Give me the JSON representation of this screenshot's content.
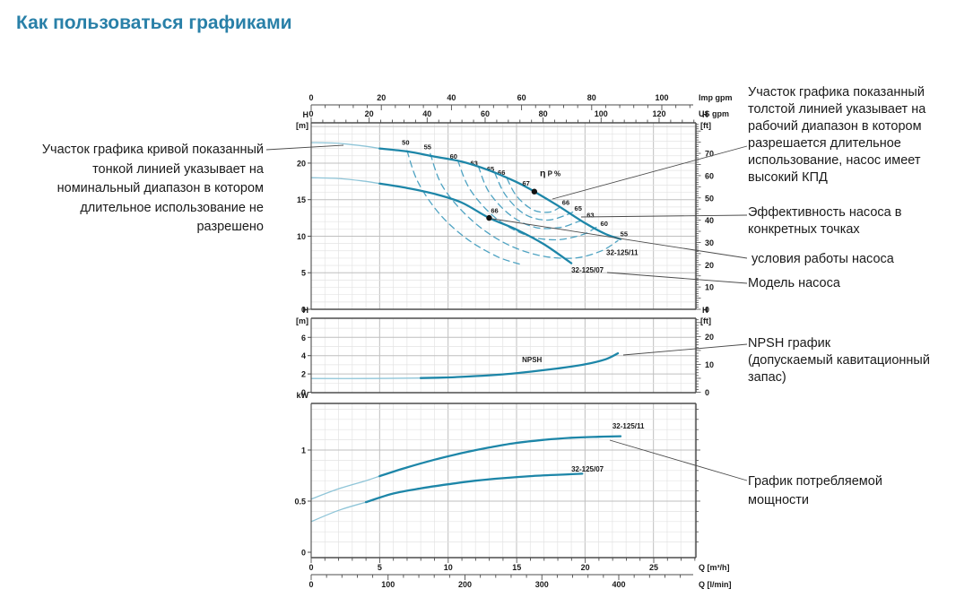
{
  "title": "Как пользоваться графиками",
  "colors": {
    "title_text": "#2980a8",
    "curve": "#1d86a8",
    "curve_thin": "#8fc5d8",
    "efficiency_dash": "#4fa3c2",
    "grid_minor": "#e3e3e3",
    "grid_major": "#bfbfbf",
    "frame": "#4d4d4d",
    "connector": "#4a4a4a",
    "text": "#1a1a1a"
  },
  "rulers": {
    "imp_gpm": {
      "unit": "Imp gpm",
      "ticks": [
        0,
        20,
        40,
        60,
        80,
        100
      ]
    },
    "us_gpm": {
      "unit": "US gpm",
      "ticks": [
        0,
        20,
        40,
        60,
        80,
        100,
        120
      ]
    },
    "q_m3h": {
      "unit": "Q [m³/h]",
      "ticks": [
        0,
        5,
        10,
        15,
        20,
        25
      ]
    },
    "q_lmin": {
      "unit": "Q [l/min]",
      "ticks": [
        0,
        100,
        200,
        300,
        400
      ]
    }
  },
  "chart_data": [
    {
      "type": "line",
      "name": "head-flow-curves",
      "xlabel": "Q [m³/h]",
      "x_range": [
        0,
        28.1
      ],
      "y_left": {
        "title": "H",
        "unit": "[m]",
        "ticks": [
          0,
          5,
          10,
          15,
          20
        ],
        "range": [
          0,
          25.5
        ]
      },
      "y_right": {
        "title": "H",
        "unit": "[ft]",
        "ticks": [
          0,
          10,
          20,
          30,
          40,
          50,
          60,
          70
        ]
      },
      "series": [
        {
          "name": "32-125/11",
          "thin": [
            [
              0,
              22.8
            ],
            [
              2,
              22.7
            ],
            [
              4,
              22.3
            ],
            [
              5,
              22.0
            ]
          ],
          "thick": [
            [
              5,
              22.0
            ],
            [
              7,
              21.6
            ],
            [
              9,
              20.9
            ],
            [
              11,
              20.2
            ],
            [
              13,
              19.0
            ],
            [
              15,
              17.4
            ],
            [
              16.3,
              16.1
            ],
            [
              18,
              14.2
            ],
            [
              20,
              11.8
            ],
            [
              21.5,
              10.3
            ],
            [
              22.6,
              9.6
            ]
          ],
          "label_pos": [
            21.55,
            7.4
          ]
        },
        {
          "name": "32-125/07",
          "thin": [
            [
              0,
              18.0
            ],
            [
              2,
              17.9
            ],
            [
              4,
              17.5
            ],
            [
              5,
              17.2
            ]
          ],
          "thick": [
            [
              5,
              17.2
            ],
            [
              7,
              16.6
            ],
            [
              9,
              15.8
            ],
            [
              11,
              14.6
            ],
            [
              13,
              12.5
            ],
            [
              15,
              10.9
            ],
            [
              17,
              8.9
            ],
            [
              19,
              6.3
            ]
          ],
          "label_pos": [
            19.0,
            5.0
          ]
        }
      ],
      "efficiency_contours": [
        {
          "value": "50",
          "points": [
            [
              7.0,
              21.7
            ],
            [
              7.8,
              17.4
            ],
            [
              9.4,
              13.0
            ],
            [
              11.4,
              9.6
            ],
            [
              13.6,
              7.2
            ],
            [
              15.2,
              6.2
            ]
          ],
          "label_left": [
            6.9,
            22.5
          ]
        },
        {
          "value": "55",
          "points": [
            [
              8.7,
              21.3
            ],
            [
              9.6,
              16.8
            ],
            [
              11.6,
              12.4
            ],
            [
              14.0,
              9.2
            ],
            [
              16.6,
              7.4
            ],
            [
              19.2,
              7.0
            ],
            [
              21.2,
              8.0
            ],
            [
              22.4,
              9.4
            ]
          ],
          "label_left": [
            8.5,
            21.9
          ],
          "label_right": [
            22.85,
            10.0
          ]
        },
        {
          "value": "60",
          "points": [
            [
              10.7,
              20.4
            ],
            [
              11.6,
              16.4
            ],
            [
              13.4,
              12.6
            ],
            [
              15.6,
              10.2
            ],
            [
              17.8,
              9.5
            ],
            [
              19.8,
              10.2
            ],
            [
              20.8,
              11.2
            ],
            [
              21.0,
              11.4
            ]
          ],
          "label_left": [
            10.4,
            20.6
          ],
          "label_right": [
            21.4,
            11.4
          ]
        },
        {
          "value": "63",
          "points": [
            [
              12.2,
              19.6
            ],
            [
              13.0,
              16.0
            ],
            [
              14.6,
              12.8
            ],
            [
              16.4,
              11.2
            ],
            [
              18.2,
              11.2
            ],
            [
              19.5,
              12.0
            ],
            [
              20.0,
              12.2
            ]
          ],
          "label_left": [
            11.9,
            19.7
          ],
          "label_right": [
            20.4,
            12.6
          ]
        },
        {
          "value": "65",
          "points": [
            [
              13.4,
              18.7
            ],
            [
              14.2,
              15.6
            ],
            [
              15.6,
              13.0
            ],
            [
              17.2,
              12.2
            ],
            [
              18.5,
              12.8
            ],
            [
              19.1,
              13.3
            ]
          ],
          "label_left": [
            13.1,
            18.9
          ],
          "label_right": [
            19.5,
            13.5
          ]
        },
        {
          "value": "66",
          "points": [
            [
              14.3,
              17.9
            ],
            [
              15.0,
              15.5
            ],
            [
              16.2,
              13.6
            ],
            [
              17.4,
              13.3
            ],
            [
              18.2,
              14.0
            ]
          ],
          "label_left": [
            13.9,
            18.4
          ],
          "label_right": [
            18.6,
            14.3
          ]
        }
      ],
      "points": [
        {
          "label": "67",
          "q": 16.3,
          "h": 16.1,
          "label_pos": [
            15.7,
            16.9
          ]
        },
        {
          "label": "66",
          "q": 13.0,
          "h": 12.5,
          "label_pos": [
            13.4,
            13.2
          ]
        }
      ],
      "texts": [
        {
          "text": "η P %",
          "q": 16.7,
          "h": 18.2
        }
      ]
    },
    {
      "type": "line",
      "name": "npsh-curve",
      "xlabel": "Q [m³/h]",
      "x_range": [
        0,
        28.1
      ],
      "y_left": {
        "title": "H",
        "unit": "[m]",
        "ticks": [
          0,
          2,
          4,
          6
        ],
        "range": [
          0,
          8.1
        ]
      },
      "y_right": {
        "title": "H",
        "unit": "[ft]",
        "ticks": [
          0,
          10,
          20
        ]
      },
      "series": [
        {
          "name": "NPSH",
          "thin": [
            [
              0,
              1.5
            ],
            [
              4,
              1.5
            ],
            [
              8,
              1.55
            ]
          ],
          "thick": [
            [
              8,
              1.55
            ],
            [
              10,
              1.62
            ],
            [
              12,
              1.76
            ],
            [
              14,
              1.95
            ],
            [
              16,
              2.25
            ],
            [
              18,
              2.6
            ],
            [
              20,
              3.05
            ],
            [
              21.5,
              3.6
            ],
            [
              22.4,
              4.25
            ]
          ],
          "label_pos": [
            15.4,
            3.3
          ]
        }
      ]
    },
    {
      "type": "line",
      "name": "power-curves",
      "xlabel": "Q [m³/h]",
      "x_range": [
        0,
        28.1
      ],
      "y_left": {
        "title": "kW",
        "unit": "",
        "ticks": [
          0,
          0.5,
          1
        ],
        "range": [
          0,
          1.46
        ]
      },
      "series": [
        {
          "name": "32-125/11",
          "thin": [
            [
              0,
              0.52
            ],
            [
              2,
              0.62
            ],
            [
              4,
              0.7
            ],
            [
              5,
              0.745
            ]
          ],
          "thick": [
            [
              5,
              0.745
            ],
            [
              7,
              0.83
            ],
            [
              9,
              0.905
            ],
            [
              11,
              0.97
            ],
            [
              13,
              1.025
            ],
            [
              15,
              1.07
            ],
            [
              17,
              1.1
            ],
            [
              19,
              1.12
            ],
            [
              21,
              1.13
            ],
            [
              22.6,
              1.135
            ]
          ],
          "label_pos": [
            22.0,
            1.21
          ]
        },
        {
          "name": "32-125/07",
          "thin": [
            [
              0,
              0.3
            ],
            [
              2,
              0.41
            ],
            [
              4,
              0.49
            ]
          ],
          "thick": [
            [
              4,
              0.49
            ],
            [
              6,
              0.575
            ],
            [
              8,
              0.625
            ],
            [
              10,
              0.665
            ],
            [
              12,
              0.7
            ],
            [
              14,
              0.725
            ],
            [
              16,
              0.745
            ],
            [
              18,
              0.758
            ],
            [
              19.8,
              0.768
            ]
          ],
          "label_pos": [
            19.0,
            0.79
          ]
        }
      ]
    }
  ],
  "annotations": {
    "left_note": {
      "text": "Участок графика кривой показанный\nтонкой линией указывает на\nноминальный диапазон в котором\nдлительное использование не\nразрешено"
    },
    "right_notes": [
      {
        "id": "thick-line-note",
        "text": "Участок графика показанный\nтолстой линией указывает на\nрабочий диапазон в котором\nразрешается длительное\nиспользование, насос имеет\nвысокий КПД"
      },
      {
        "id": "efficiency-note",
        "text": "Эффективность насоса в\nконкретных точках"
      },
      {
        "id": "operating-note",
        "text": "условия работы насоса"
      },
      {
        "id": "model-note",
        "text": "Модель насоса"
      },
      {
        "id": "npsh-note",
        "text": "NPSH график\n (допускаемый кавитационный запас)"
      },
      {
        "id": "power-note",
        "text": "График потребляемой\nмощности"
      }
    ]
  }
}
